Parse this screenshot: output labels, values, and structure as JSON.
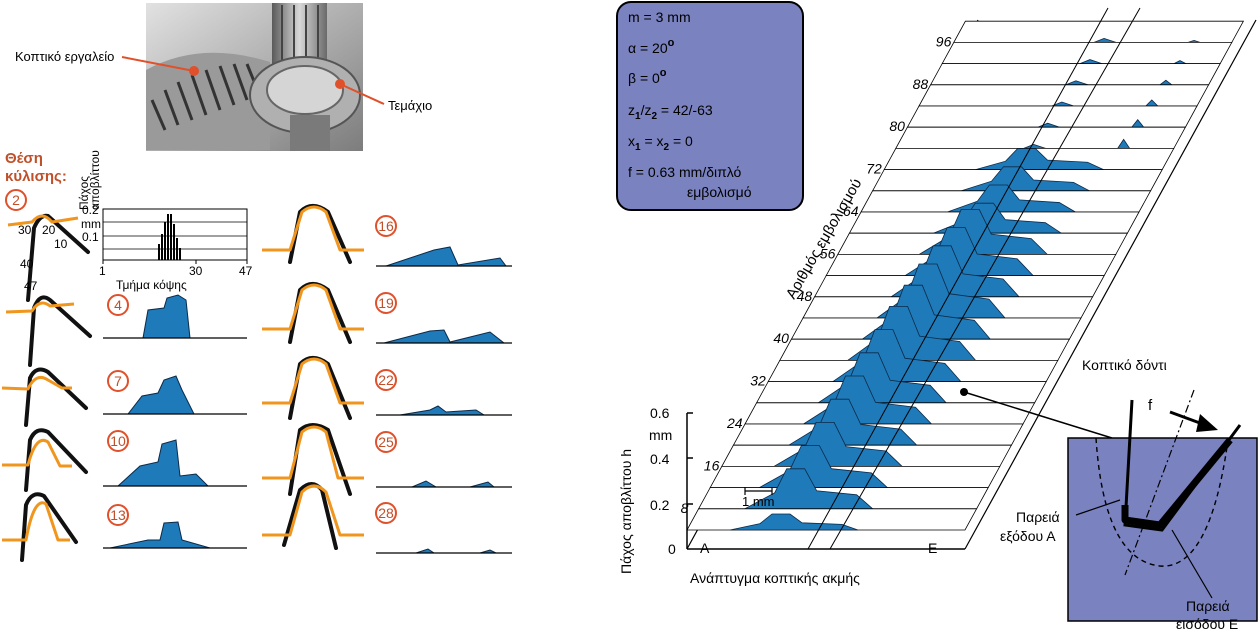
{
  "photo": {
    "tool_label": "Κοπτικό εργαλείο",
    "workpiece_label": "Τεμάχιο"
  },
  "rolling": {
    "title_line1": "Θέση",
    "title_line2": "κύλισης:",
    "first_number": "2",
    "profile_numbers": [
      "4",
      "7",
      "10",
      "13",
      "16",
      "19",
      "22",
      "25",
      "28"
    ],
    "segment_labels": [
      "30",
      "20",
      "10",
      "40",
      "47"
    ]
  },
  "histogram": {
    "ylabel_line1": "Πάχος",
    "ylabel_line2": "αποβλίττου",
    "yticks": [
      "0.2",
      "mm",
      "0.1"
    ],
    "xticks": [
      "1",
      "30",
      "47"
    ],
    "xlabel": "Τμήμα κόψης"
  },
  "params": {
    "lines": [
      {
        "main": "m = 3 mm"
      },
      {
        "main": "α = 20",
        "sup": "o"
      },
      {
        "main": "β = 0",
        "sup": "o"
      },
      {
        "main": "z",
        "sub1": "1",
        "mid": "/z",
        "sub2": "2",
        "tail": " = 42/-63"
      },
      {
        "main": "x",
        "sub1": "1",
        "mid": " = x",
        "sub2": "2",
        "tail": " = 0"
      },
      {
        "main": "f = 0.63 mm/διπλό"
      },
      {
        "main": "εμβολισμό"
      }
    ],
    "color": "#7a82c0"
  },
  "waterfall": {
    "axis_title": "Αριθμός εμβολισμού",
    "stroke_numbers": [
      "8",
      "16",
      "24",
      "32",
      "40",
      "48",
      "56",
      "64",
      "72",
      "80",
      "88",
      "96"
    ],
    "yaxis_label": "Πάχος αποβλίττου h",
    "yticks": [
      "0.6",
      "mm",
      "0.4",
      "0.2",
      "0"
    ],
    "xaxis_label": "Ανάπτυγμα κοπτικής ακμής",
    "start_label": "A",
    "end_label": "E",
    "scale_label": "1 mm",
    "fill_color": "#1e7ab8"
  },
  "inset": {
    "tooth_label": "Κοπτικό δόντι",
    "feed_label": "f",
    "exit_label_line1": "Παρειά",
    "exit_label_line2": "εξόδου Α",
    "entry_label_line1": "Παρειά",
    "entry_label_line2": "εισόδου Ε",
    "color": "#7a82c0"
  }
}
